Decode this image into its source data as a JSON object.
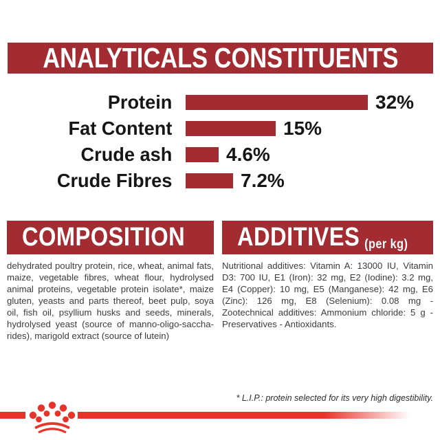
{
  "header": {
    "title": "ANALYTICALS CONSTITUENTS"
  },
  "chart_data": {
    "type": "bar",
    "orientation": "horizontal",
    "title": "ANALYTICALS CONSTITUENTS",
    "categories": [
      "Protein",
      "Fat Content",
      "Crude ash",
      "Crude Fibres"
    ],
    "values": [
      32,
      15,
      4.6,
      7.2
    ],
    "value_labels": [
      "32%",
      "15%",
      "4.6%",
      "7.2%"
    ],
    "unit": "%",
    "xlim": [
      0,
      32
    ],
    "grid": false,
    "bar_color": "#A32C33",
    "value_label_position": "right-of-bar"
  },
  "composition": {
    "title": "COMPOSITION",
    "body": "dehydrated poultry protein, rice, wheat, animal fats, maize, vegetable fibres, wheat flour, hydrolysed animal proteins, vegetable protein isolate*, maize gluten, yeasts and parts thereof, beet pulp, soya oil, fish oil, psyllium husks and seeds, minerals, hydrolysed yeast (source of manno-oligo-saccha-rides), marigold extract (source of lutein)"
  },
  "additives": {
    "title": "ADDITIVES",
    "unit": "(per kg)",
    "body": "Nutritional additives: Vitamin A: 13000 IU, Vitamin D3: 700 IU, E1 (Iron): 32 mg, E2 (Iodine): 3.2 mg, E4 (Copper): 10 mg, E5 (Manganese): 42 mg, E6 (Zinc): 126 mg, E8 (Selenium): 0.08 mg - Zootechnical additives: Ammonium chloride: 5 g - Preservatives - Antioxidants."
  },
  "footnote": "* L.I.P.: protein selected for its very high digestibility.",
  "branding": {
    "logo": "royal-canin-crown",
    "banner_red": "#A32C33",
    "accent_red": "#E8332A",
    "background": "#FFFFFF"
  }
}
